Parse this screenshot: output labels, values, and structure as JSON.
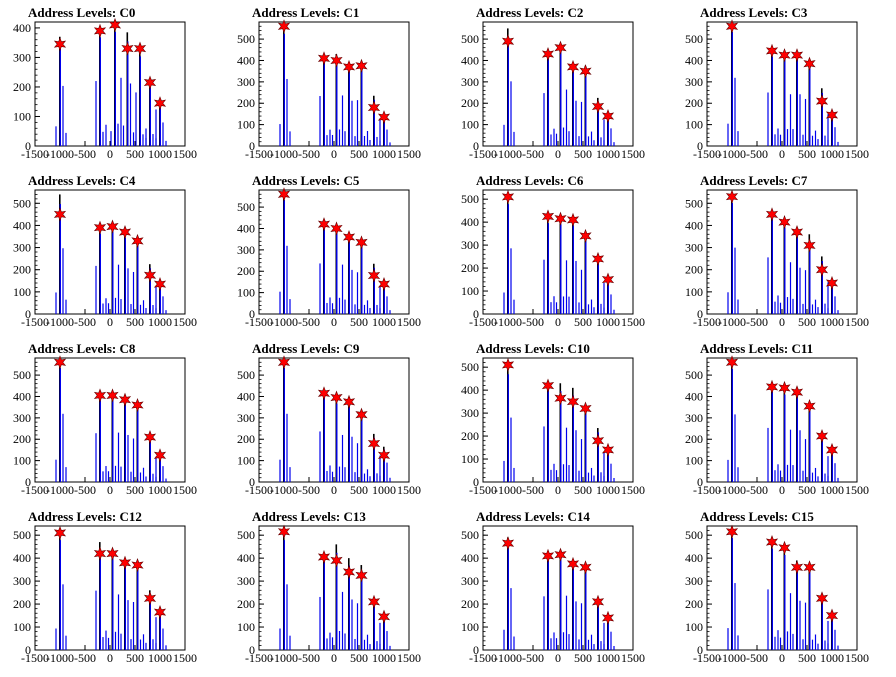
{
  "chart_data": [
    {
      "type": "bar",
      "title": "Address Levels: C0",
      "xlim": [
        -1500,
        1500
      ],
      "ylim": [
        0,
        420
      ],
      "yticks": [
        0,
        100,
        200,
        300,
        400
      ],
      "xticks": [
        -1500,
        -1000,
        -500,
        0,
        500,
        1000,
        1500
      ],
      "peaks": [
        {
          "x": -1000,
          "y": 370,
          "star": 345
        },
        {
          "x": -200,
          "y": 400,
          "star": 390
        },
        {
          "x": 100,
          "y": 420,
          "star": 410
        },
        {
          "x": 350,
          "y": 385,
          "star": 330
        },
        {
          "x": 600,
          "y": 330,
          "star": 330
        },
        {
          "x": 800,
          "y": 225,
          "star": 215
        },
        {
          "x": 1000,
          "y": 145,
          "star": 145
        }
      ]
    },
    {
      "type": "bar",
      "title": "Address Levels: C1",
      "xlim": [
        -1500,
        1500
      ],
      "ylim": [
        0,
        580
      ],
      "yticks": [
        0,
        100,
        200,
        300,
        400,
        500
      ],
      "xticks": [
        -1500,
        -1000,
        -500,
        0,
        500,
        1000,
        1500
      ],
      "peaks": [
        {
          "x": -1000,
          "y": 570,
          "star": 560
        },
        {
          "x": -200,
          "y": 425,
          "star": 410
        },
        {
          "x": 50,
          "y": 430,
          "star": 400
        },
        {
          "x": 300,
          "y": 385,
          "star": 370
        },
        {
          "x": 550,
          "y": 390,
          "star": 375
        },
        {
          "x": 800,
          "y": 235,
          "star": 180
        },
        {
          "x": 1000,
          "y": 140,
          "star": 135
        }
      ]
    },
    {
      "type": "bar",
      "title": "Address Levels: C2",
      "xlim": [
        -1500,
        1500
      ],
      "ylim": [
        0,
        580
      ],
      "yticks": [
        0,
        100,
        200,
        300,
        400,
        500
      ],
      "xticks": [
        -1500,
        -1000,
        -500,
        0,
        500,
        1000,
        1500
      ],
      "peaks": [
        {
          "x": -1000,
          "y": 550,
          "star": 490
        },
        {
          "x": -200,
          "y": 450,
          "star": 430
        },
        {
          "x": 50,
          "y": 480,
          "star": 460
        },
        {
          "x": 300,
          "y": 385,
          "star": 370
        },
        {
          "x": 550,
          "y": 375,
          "star": 350
        },
        {
          "x": 800,
          "y": 225,
          "star": 185
        },
        {
          "x": 1000,
          "y": 150,
          "star": 140
        }
      ]
    },
    {
      "type": "bar",
      "title": "Address Levels: C3",
      "xlim": [
        -1500,
        1500
      ],
      "ylim": [
        0,
        580
      ],
      "yticks": [
        0,
        100,
        200,
        300,
        400,
        500
      ],
      "xticks": [
        -1500,
        -1000,
        -500,
        0,
        500,
        1000,
        1500
      ],
      "peaks": [
        {
          "x": -1000,
          "y": 580,
          "star": 560
        },
        {
          "x": -200,
          "y": 455,
          "star": 445
        },
        {
          "x": 50,
          "y": 440,
          "star": 425
        },
        {
          "x": 300,
          "y": 440,
          "star": 425
        },
        {
          "x": 550,
          "y": 400,
          "star": 385
        },
        {
          "x": 800,
          "y": 270,
          "star": 210
        },
        {
          "x": 1000,
          "y": 160,
          "star": 145
        }
      ]
    },
    {
      "type": "bar",
      "title": "Address Levels: C4",
      "xlim": [
        -1500,
        1500
      ],
      "ylim": [
        0,
        560
      ],
      "yticks": [
        0,
        100,
        200,
        300,
        400,
        500
      ],
      "xticks": [
        -1500,
        -1000,
        -500,
        0,
        500,
        1000,
        1500
      ],
      "peaks": [
        {
          "x": -1000,
          "y": 540,
          "star": 450
        },
        {
          "x": -200,
          "y": 395,
          "star": 390
        },
        {
          "x": 50,
          "y": 405,
          "star": 395
        },
        {
          "x": 300,
          "y": 375,
          "star": 370
        },
        {
          "x": 550,
          "y": 345,
          "star": 330
        },
        {
          "x": 800,
          "y": 225,
          "star": 175
        },
        {
          "x": 1000,
          "y": 145,
          "star": 135
        }
      ]
    },
    {
      "type": "bar",
      "title": "Address Levels: C5",
      "xlim": [
        -1500,
        1500
      ],
      "ylim": [
        0,
        580
      ],
      "yticks": [
        0,
        100,
        200,
        300,
        400,
        500
      ],
      "xticks": [
        -1500,
        -1000,
        -500,
        0,
        500,
        1000,
        1500
      ],
      "peaks": [
        {
          "x": -1000,
          "y": 580,
          "star": 560
        },
        {
          "x": -200,
          "y": 430,
          "star": 420
        },
        {
          "x": 50,
          "y": 420,
          "star": 400
        },
        {
          "x": 300,
          "y": 375,
          "star": 360
        },
        {
          "x": 550,
          "y": 355,
          "star": 335
        },
        {
          "x": 800,
          "y": 235,
          "star": 180
        },
        {
          "x": 1000,
          "y": 150,
          "star": 140
        }
      ]
    },
    {
      "type": "bar",
      "title": "Address Levels: C6",
      "xlim": [
        -1500,
        1500
      ],
      "ylim": [
        0,
        540
      ],
      "yticks": [
        0,
        100,
        200,
        300,
        400,
        500
      ],
      "xticks": [
        -1500,
        -1000,
        -500,
        0,
        500,
        1000,
        1500
      ],
      "peaks": [
        {
          "x": -1000,
          "y": 520,
          "star": 510
        },
        {
          "x": -200,
          "y": 430,
          "star": 425
        },
        {
          "x": 50,
          "y": 425,
          "star": 415
        },
        {
          "x": 300,
          "y": 420,
          "star": 410
        },
        {
          "x": 550,
          "y": 350,
          "star": 340
        },
        {
          "x": 800,
          "y": 245,
          "star": 240
        },
        {
          "x": 1000,
          "y": 155,
          "star": 150
        }
      ]
    },
    {
      "type": "bar",
      "title": "Address Levels: C7",
      "xlim": [
        -1500,
        1500
      ],
      "ylim": [
        0,
        560
      ],
      "yticks": [
        0,
        100,
        200,
        300,
        400,
        500
      ],
      "xticks": [
        -1500,
        -1000,
        -500,
        0,
        500,
        1000,
        1500
      ],
      "peaks": [
        {
          "x": -1000,
          "y": 545,
          "star": 530
        },
        {
          "x": -200,
          "y": 465,
          "star": 450
        },
        {
          "x": 50,
          "y": 425,
          "star": 415
        },
        {
          "x": 300,
          "y": 380,
          "star": 370
        },
        {
          "x": 550,
          "y": 360,
          "star": 310
        },
        {
          "x": 800,
          "y": 260,
          "star": 200
        },
        {
          "x": 1000,
          "y": 145,
          "star": 140
        }
      ]
    },
    {
      "type": "bar",
      "title": "Address Levels: C8",
      "xlim": [
        -1500,
        1500
      ],
      "ylim": [
        0,
        580
      ],
      "yticks": [
        0,
        100,
        200,
        300,
        400,
        500
      ],
      "xticks": [
        -1500,
        -1000,
        -500,
        0,
        500,
        1000,
        1500
      ],
      "peaks": [
        {
          "x": -1000,
          "y": 580,
          "star": 560
        },
        {
          "x": -200,
          "y": 415,
          "star": 405
        },
        {
          "x": 50,
          "y": 420,
          "star": 405
        },
        {
          "x": 300,
          "y": 400,
          "star": 385
        },
        {
          "x": 550,
          "y": 370,
          "star": 360
        },
        {
          "x": 800,
          "y": 215,
          "star": 210
        },
        {
          "x": 1000,
          "y": 135,
          "star": 125
        }
      ]
    },
    {
      "type": "bar",
      "title": "Address Levels: C9",
      "xlim": [
        -1500,
        1500
      ],
      "ylim": [
        0,
        580
      ],
      "yticks": [
        0,
        100,
        200,
        300,
        400,
        500
      ],
      "xticks": [
        -1500,
        -1000,
        -500,
        0,
        500,
        1000,
        1500
      ],
      "peaks": [
        {
          "x": -1000,
          "y": 580,
          "star": 560
        },
        {
          "x": -200,
          "y": 430,
          "star": 415
        },
        {
          "x": 50,
          "y": 400,
          "star": 395
        },
        {
          "x": 300,
          "y": 385,
          "star": 375
        },
        {
          "x": 550,
          "y": 330,
          "star": 315
        },
        {
          "x": 800,
          "y": 225,
          "star": 180
        },
        {
          "x": 1000,
          "y": 165,
          "star": 125
        }
      ]
    },
    {
      "type": "bar",
      "title": "Address Levels: C10",
      "xlim": [
        -1500,
        1500
      ],
      "ylim": [
        0,
        540
      ],
      "yticks": [
        0,
        100,
        200,
        300,
        400,
        500
      ],
      "xticks": [
        -1500,
        -1000,
        -500,
        0,
        500,
        1000,
        1500
      ],
      "peaks": [
        {
          "x": -1000,
          "y": 510,
          "star": 510
        },
        {
          "x": -200,
          "y": 440,
          "star": 420
        },
        {
          "x": 50,
          "y": 430,
          "star": 365
        },
        {
          "x": 300,
          "y": 410,
          "star": 350
        },
        {
          "x": 550,
          "y": 340,
          "star": 320
        },
        {
          "x": 800,
          "y": 235,
          "star": 180
        },
        {
          "x": 1000,
          "y": 145,
          "star": 140
        }
      ]
    },
    {
      "type": "bar",
      "title": "Address Levels: C11",
      "xlim": [
        -1500,
        1500
      ],
      "ylim": [
        0,
        580
      ],
      "yticks": [
        0,
        100,
        200,
        300,
        400,
        500
      ],
      "xticks": [
        -1500,
        -1000,
        -500,
        0,
        500,
        1000,
        1500
      ],
      "peaks": [
        {
          "x": -1000,
          "y": 575,
          "star": 560
        },
        {
          "x": -200,
          "y": 460,
          "star": 445
        },
        {
          "x": 50,
          "y": 445,
          "star": 440
        },
        {
          "x": 300,
          "y": 440,
          "star": 420
        },
        {
          "x": 550,
          "y": 365,
          "star": 355
        },
        {
          "x": 800,
          "y": 220,
          "star": 215
        },
        {
          "x": 1000,
          "y": 160,
          "star": 150
        }
      ]
    },
    {
      "type": "bar",
      "title": "Address Levels: C12",
      "xlim": [
        -1500,
        1500
      ],
      "ylim": [
        0,
        540
      ],
      "yticks": [
        0,
        100,
        200,
        300,
        400,
        500
      ],
      "xticks": [
        -1500,
        -1000,
        -500,
        0,
        500,
        1000,
        1500
      ],
      "peaks": [
        {
          "x": -1000,
          "y": 520,
          "star": 510
        },
        {
          "x": -200,
          "y": 470,
          "star": 420
        },
        {
          "x": 50,
          "y": 440,
          "star": 420
        },
        {
          "x": 300,
          "y": 395,
          "star": 380
        },
        {
          "x": 550,
          "y": 380,
          "star": 370
        },
        {
          "x": 800,
          "y": 260,
          "star": 225
        },
        {
          "x": 1000,
          "y": 170,
          "star": 165
        }
      ]
    },
    {
      "type": "bar",
      "title": "Address Levels: C13",
      "xlim": [
        -1500,
        1500
      ],
      "ylim": [
        0,
        540
      ],
      "yticks": [
        0,
        100,
        200,
        300,
        400,
        500
      ],
      "xticks": [
        -1500,
        -1000,
        -500,
        0,
        500,
        1000,
        1500
      ],
      "peaks": [
        {
          "x": -1000,
          "y": 520,
          "star": 515
        },
        {
          "x": -200,
          "y": 420,
          "star": 405
        },
        {
          "x": 50,
          "y": 460,
          "star": 390
        },
        {
          "x": 300,
          "y": 400,
          "star": 340
        },
        {
          "x": 550,
          "y": 370,
          "star": 325
        },
        {
          "x": 800,
          "y": 215,
          "star": 210
        },
        {
          "x": 1000,
          "y": 150,
          "star": 145
        }
      ]
    },
    {
      "type": "bar",
      "title": "Address Levels: C14",
      "xlim": [
        -1500,
        1500
      ],
      "ylim": [
        0,
        540
      ],
      "yticks": [
        0,
        100,
        200,
        300,
        400,
        500
      ],
      "xticks": [
        -1500,
        -1000,
        -500,
        0,
        500,
        1000,
        1500
      ],
      "peaks": [
        {
          "x": -1000,
          "y": 490,
          "star": 465
        },
        {
          "x": -200,
          "y": 425,
          "star": 410
        },
        {
          "x": 50,
          "y": 430,
          "star": 415
        },
        {
          "x": 300,
          "y": 385,
          "star": 375
        },
        {
          "x": 550,
          "y": 370,
          "star": 360
        },
        {
          "x": 800,
          "y": 215,
          "star": 210
        },
        {
          "x": 1000,
          "y": 145,
          "star": 140
        }
      ]
    },
    {
      "type": "bar",
      "title": "Address Levels: C15",
      "xlim": [
        -1500,
        1500
      ],
      "ylim": [
        0,
        540
      ],
      "yticks": [
        0,
        100,
        200,
        300,
        400,
        500
      ],
      "xticks": [
        -1500,
        -1000,
        -500,
        0,
        500,
        1000,
        1500
      ],
      "peaks": [
        {
          "x": -1000,
          "y": 530,
          "star": 515
        },
        {
          "x": -200,
          "y": 480,
          "star": 470
        },
        {
          "x": 50,
          "y": 450,
          "star": 445
        },
        {
          "x": 300,
          "y": 390,
          "star": 360
        },
        {
          "x": 550,
          "y": 375,
          "star": 360
        },
        {
          "x": 800,
          "y": 230,
          "star": 225
        },
        {
          "x": 1000,
          "y": 160,
          "star": 150
        }
      ]
    }
  ],
  "colors": {
    "bar": "#0000ee",
    "bar_dark": "#000000",
    "star_fill": "#ff0000",
    "star_stroke": "#660000",
    "axis": "#000000"
  }
}
